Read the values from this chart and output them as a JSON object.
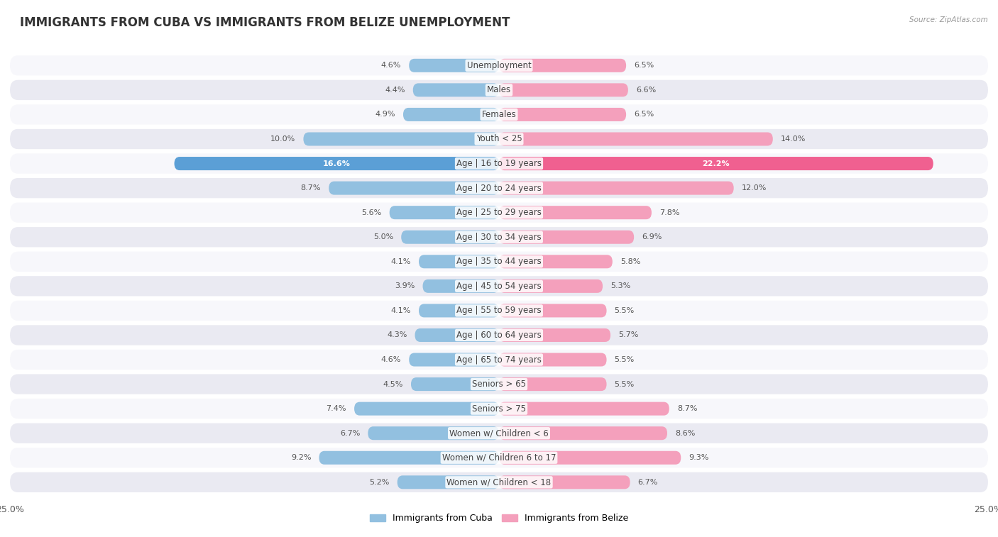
{
  "title": "IMMIGRANTS FROM CUBA VS IMMIGRANTS FROM BELIZE UNEMPLOYMENT",
  "source": "Source: ZipAtlas.com",
  "categories": [
    "Unemployment",
    "Males",
    "Females",
    "Youth < 25",
    "Age | 16 to 19 years",
    "Age | 20 to 24 years",
    "Age | 25 to 29 years",
    "Age | 30 to 34 years",
    "Age | 35 to 44 years",
    "Age | 45 to 54 years",
    "Age | 55 to 59 years",
    "Age | 60 to 64 years",
    "Age | 65 to 74 years",
    "Seniors > 65",
    "Seniors > 75",
    "Women w/ Children < 6",
    "Women w/ Children 6 to 17",
    "Women w/ Children < 18"
  ],
  "cuba_values": [
    4.6,
    4.4,
    4.9,
    10.0,
    16.6,
    8.7,
    5.6,
    5.0,
    4.1,
    3.9,
    4.1,
    4.3,
    4.6,
    4.5,
    7.4,
    6.7,
    9.2,
    5.2
  ],
  "belize_values": [
    6.5,
    6.6,
    6.5,
    14.0,
    22.2,
    12.0,
    7.8,
    6.9,
    5.8,
    5.3,
    5.5,
    5.7,
    5.5,
    5.5,
    8.7,
    8.6,
    9.3,
    6.7
  ],
  "cuba_color": "#92c0e0",
  "belize_color": "#f4a0bc",
  "cuba_highlight_color": "#5b9fd6",
  "belize_highlight_color": "#f06090",
  "bg_color": "#ffffff",
  "row_bg_light": "#f7f7fb",
  "row_bg_dark": "#eaeaf2",
  "xlim": 25.0,
  "legend_cuba": "Immigrants from Cuba",
  "legend_belize": "Immigrants from Belize",
  "title_fontsize": 12,
  "label_fontsize": 8.5,
  "value_fontsize": 8.0
}
